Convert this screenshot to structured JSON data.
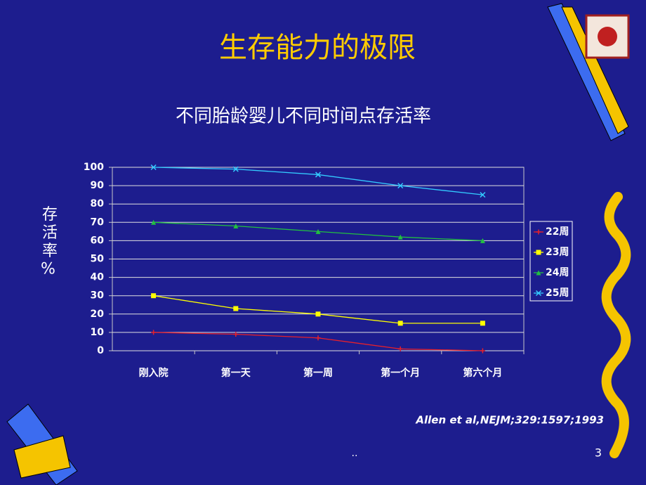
{
  "slide": {
    "title": "生存能力的极限",
    "citation": "Allen et al,NEJM;329:1597;1993",
    "footer": "..",
    "page_number": "3"
  },
  "chart_data": {
    "type": "line",
    "title": "不同胎龄婴儿不同时间点存活率",
    "y_label": "存活率%",
    "categories": [
      "刚入院",
      "第一天",
      "第一周",
      "第一个月",
      "第六个月"
    ],
    "series": [
      {
        "name": "22周",
        "color": "#e8202a",
        "values": [
          10,
          9,
          7,
          1,
          0
        ]
      },
      {
        "name": "23周",
        "color": "#ffff00",
        "values": [
          30,
          23,
          20,
          15,
          15
        ]
      },
      {
        "name": "24周",
        "color": "#22c040",
        "values": [
          70,
          68,
          65,
          62,
          60
        ]
      },
      {
        "name": "25周",
        "color": "#33ccff",
        "values": [
          100,
          99,
          96,
          90,
          85
        ]
      }
    ],
    "ylim": [
      0,
      100
    ],
    "yticks": [
      0,
      10,
      20,
      30,
      40,
      50,
      60,
      70,
      80,
      90,
      100
    ],
    "grid": true,
    "legend": "right"
  }
}
